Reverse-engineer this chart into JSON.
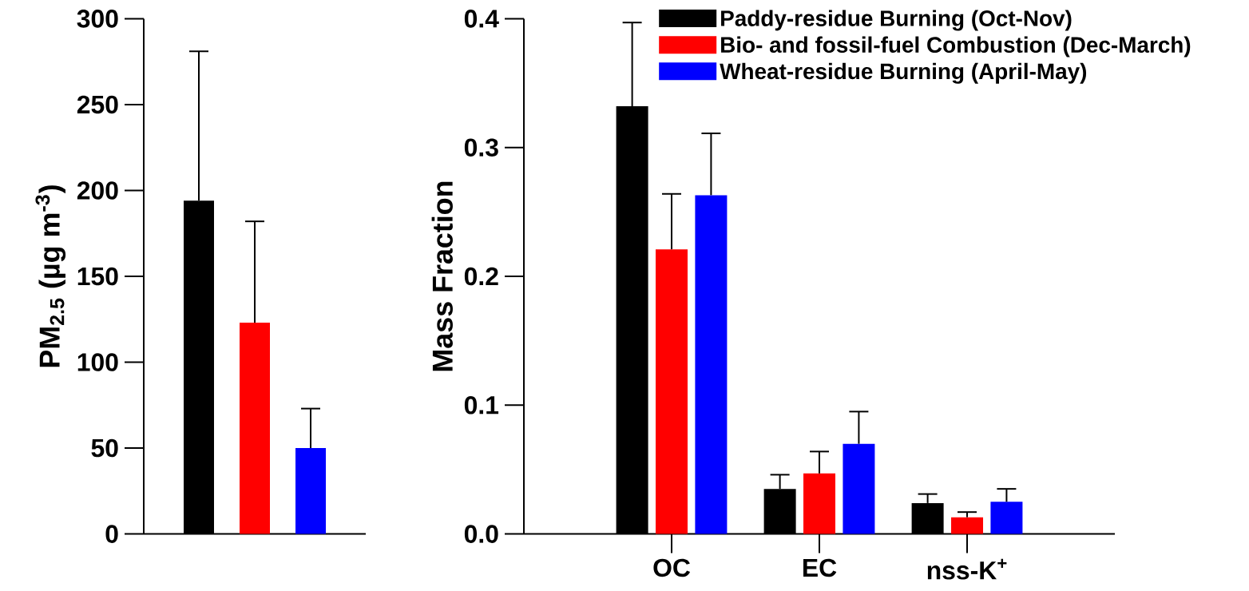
{
  "chart_data": [
    {
      "type": "bar",
      "ylabel": "PM$_{2.5}$ (µg m$^{-3}$)",
      "categories": [
        null
      ],
      "ylim": [
        0,
        300
      ],
      "yticks": [
        0,
        50,
        100,
        150,
        200,
        250,
        300
      ],
      "series": [
        {
          "color": "#000000",
          "values": [
            194
          ],
          "errors": [
            [
              194,
              281
            ]
          ]
        },
        {
          "color": "#ff0000",
          "values": [
            123
          ],
          "errors": [
            [
              123,
              182
            ]
          ]
        },
        {
          "color": "#0000ff",
          "values": [
            50
          ],
          "errors": [
            [
              50,
              73
            ]
          ]
        }
      ]
    },
    {
      "type": "bar",
      "ylabel": "Mass Fraction",
      "categories": [
        "OC",
        "EC",
        "nss-K$^{+}$"
      ],
      "ylim": [
        0,
        0.4
      ],
      "yticks": [
        {
          "value": 0,
          "label": "0.0"
        },
        0.1,
        0.2,
        0.3,
        0.4
      ],
      "legend": "top right",
      "series": [
        {
          "name": "Paddy-residue Burning (Oct-Nov)",
          "color": "#000000",
          "values": [
            0.332,
            0.035,
            0.024
          ],
          "errors": [
            [
              0.332,
              0.397
            ],
            [
              0.035,
              0.046
            ],
            [
              0.024,
              0.031
            ]
          ]
        },
        {
          "name": "Bio- and fossil-fuel Combustion (Dec-March)",
          "color": "#ff0000",
          "values": [
            0.221,
            0.047,
            0.013
          ],
          "errors": [
            [
              0.221,
              0.264
            ],
            [
              0.047,
              0.064
            ],
            [
              0.013,
              0.017
            ]
          ]
        },
        {
          "name": "Wheat-residue Burning (April-May)",
          "color": "#0000ff",
          "values": [
            0.263,
            0.07,
            0.025
          ],
          "errors": [
            [
              0.263,
              0.311
            ],
            [
              0.07,
              0.095
            ],
            [
              0.025,
              0.035
            ]
          ]
        }
      ]
    }
  ]
}
